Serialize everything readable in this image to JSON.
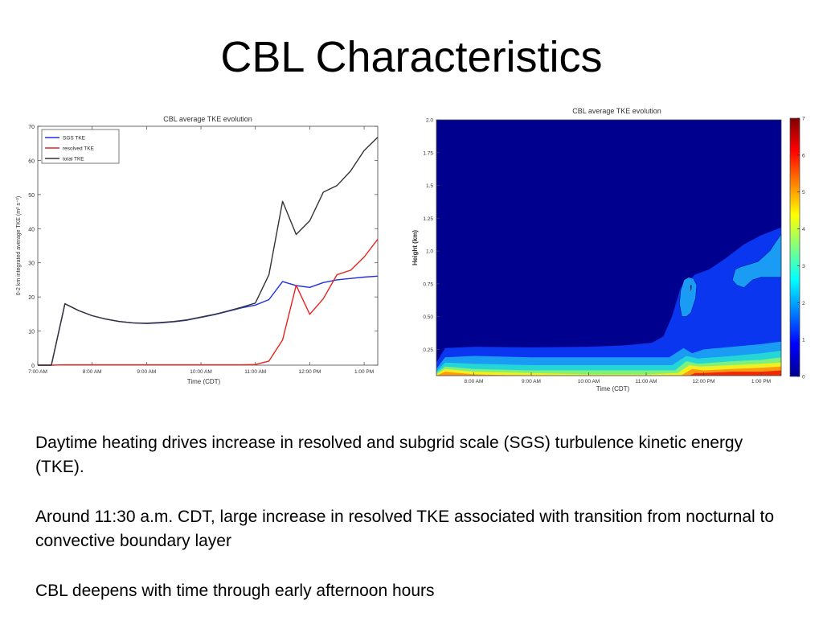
{
  "slide": {
    "title": "CBL Characteristics",
    "paragraphs": [
      "Daytime heating drives increase in resolved and subgrid scale (SGS)  turbulence kinetic energy (TKE).",
      "Around 11:30 a.m. CDT, large increase in resolved TKE associated with transition from nocturnal to convective boundary layer",
      "CBL deepens with time through early afternoon hours"
    ]
  },
  "chart_data": [
    {
      "type": "line",
      "title": "CBL average TKE evolution",
      "xlabel": "Time (CDT)",
      "ylabel": "0-2 km integrated average TKE (m² s⁻²)",
      "x_tick_labels": [
        "7:00 AM",
        "8:00 AM",
        "9:00 AM",
        "10:00 AM",
        "11:00 AM",
        "12:00 PM",
        "1:00 PM"
      ],
      "x_tick_hours": [
        7,
        8,
        9,
        10,
        11,
        12,
        13
      ],
      "xlim": [
        7,
        13.25
      ],
      "ylim": [
        0,
        70
      ],
      "y_ticks": [
        0,
        10,
        20,
        30,
        40,
        50,
        60,
        70
      ],
      "legend_position": "top-left",
      "x": [
        7.0,
        7.25,
        7.5,
        7.75,
        8.0,
        8.25,
        8.5,
        8.75,
        9.0,
        9.25,
        9.5,
        9.75,
        10.0,
        10.25,
        10.5,
        10.75,
        11.0,
        11.25,
        11.5,
        11.75,
        12.0,
        12.25,
        12.5,
        12.75,
        13.0,
        13.25
      ],
      "series": [
        {
          "name": "SGS TKE",
          "color": "#1f2fe0",
          "values": [
            0,
            0,
            18,
            16,
            14.5,
            13.5,
            12.8,
            12.4,
            12.2,
            12.4,
            12.7,
            13.2,
            14.0,
            14.8,
            15.8,
            16.8,
            17.6,
            19.2,
            24.5,
            23.3,
            22.8,
            24.2,
            25.0,
            25.4,
            25.8,
            26.1
          ]
        },
        {
          "name": "resolved TKE",
          "color": "#e8231f",
          "values": [
            0,
            0,
            0.1,
            0.1,
            0.1,
            0.1,
            0.1,
            0.1,
            0.1,
            0.1,
            0.1,
            0.1,
            0.1,
            0.1,
            0.1,
            0.1,
            0.2,
            1.2,
            7.4,
            23.4,
            14.9,
            19.5,
            26.5,
            27.8,
            31.7,
            36.9
          ]
        },
        {
          "name": "total TKE",
          "color": "#333333",
          "values": [
            0,
            0,
            18,
            16,
            14.5,
            13.5,
            12.8,
            12.4,
            12.3,
            12.5,
            12.8,
            13.3,
            14.1,
            14.9,
            15.9,
            17.0,
            18.2,
            26.5,
            48.0,
            38.3,
            42.3,
            50.7,
            52.6,
            56.9,
            62.9,
            66.8
          ]
        }
      ]
    },
    {
      "type": "heatmap",
      "title": "CBL average TKE evolution",
      "xlabel": "Time (CDT)",
      "ylabel": "Height (km)",
      "x_tick_labels": [
        "8:00 AM",
        "9:00 AM",
        "10:00 AM",
        "11:00 AM",
        "12:00 PM",
        "1:00 PM"
      ],
      "x_tick_hours": [
        8,
        9,
        10,
        11,
        12,
        13
      ],
      "xlim": [
        7.35,
        13.35
      ],
      "y_tick_labels": [
        "0.25",
        "0.50",
        "0.75",
        "1.0",
        "1.25",
        "1.5",
        "1.75",
        "2.0"
      ],
      "y_tick_values": [
        0.25,
        0.5,
        0.75,
        1.0,
        1.25,
        1.5,
        1.75,
        2.0
      ],
      "ylim": [
        0.05,
        2.0
      ],
      "colorbar": {
        "min": 0,
        "max": 7,
        "ticks": [
          0,
          1,
          2,
          3,
          4,
          5,
          6,
          7
        ]
      },
      "level_colors": [
        "#00008f",
        "#0a36f0",
        "#1a9cf5",
        "#24d6d6",
        "#7df07d",
        "#f0f020",
        "#ff9a10",
        "#f02a00",
        "#a00000"
      ],
      "annotation": "!",
      "annotation_time": 11.78,
      "annotation_height": 0.7,
      "boundaries": [
        {
          "level": 1,
          "times": [
            7.35,
            7.5,
            8.0,
            9.0,
            10.0,
            10.6,
            11.1,
            11.3,
            11.45,
            11.6,
            11.85,
            12.1,
            12.4,
            12.7,
            13.0,
            13.35
          ],
          "heights": [
            0.15,
            0.26,
            0.27,
            0.265,
            0.27,
            0.28,
            0.3,
            0.35,
            0.5,
            0.72,
            0.82,
            0.86,
            0.95,
            1.05,
            1.12,
            1.18
          ]
        },
        {
          "level": 2,
          "times": [
            7.35,
            7.5,
            8.0,
            9.0,
            10.0,
            11.0,
            11.4,
            11.65,
            11.8,
            12.0,
            12.5,
            13.0,
            13.35
          ],
          "heights": [
            0.1,
            0.19,
            0.2,
            0.19,
            0.19,
            0.19,
            0.19,
            0.26,
            0.22,
            0.25,
            0.27,
            0.29,
            0.31
          ]
        },
        {
          "level": 3,
          "times": [
            7.35,
            7.5,
            8.0,
            9.0,
            10.0,
            11.0,
            11.45,
            11.7,
            11.9,
            12.5,
            13.0,
            13.35
          ],
          "heights": [
            0.08,
            0.15,
            0.14,
            0.13,
            0.13,
            0.13,
            0.13,
            0.2,
            0.18,
            0.2,
            0.22,
            0.24
          ]
        },
        {
          "level": 4,
          "times": [
            7.35,
            7.5,
            8.0,
            9.0,
            10.0,
            11.0,
            11.5,
            11.7,
            11.9,
            12.5,
            13.0,
            13.35
          ],
          "heights": [
            0.07,
            0.12,
            0.1,
            0.09,
            0.09,
            0.09,
            0.09,
            0.16,
            0.14,
            0.16,
            0.17,
            0.19
          ]
        },
        {
          "level": 5,
          "times": [
            7.35,
            7.5,
            8.0,
            9.0,
            10.0,
            11.0,
            11.55,
            11.75,
            11.95,
            12.5,
            13.0,
            13.35
          ],
          "heights": [
            0.06,
            0.1,
            0.08,
            0.07,
            0.06,
            0.06,
            0.07,
            0.13,
            0.12,
            0.13,
            0.14,
            0.15
          ]
        },
        {
          "level": 6,
          "times": [
            7.35,
            7.5,
            8.0,
            9.0,
            10.0,
            11.0,
            11.6,
            11.8,
            12.0,
            12.5,
            13.0,
            13.35
          ],
          "heights": [
            0.05,
            0.08,
            0.06,
            0.05,
            0.05,
            0.05,
            0.05,
            0.1,
            0.09,
            0.1,
            0.11,
            0.12
          ]
        },
        {
          "level": 7,
          "times": [
            11.75,
            11.85,
            12.0,
            12.5,
            13.0,
            13.35
          ],
          "heights": [
            0.05,
            0.07,
            0.07,
            0.08,
            0.08,
            0.09
          ]
        }
      ],
      "patches": [
        {
          "level": 2,
          "times": [
            11.58,
            11.62,
            11.7,
            11.78,
            11.86,
            11.88,
            11.82,
            11.74,
            11.66,
            11.6,
            11.58
          ],
          "heights": [
            0.6,
            0.5,
            0.5,
            0.53,
            0.64,
            0.74,
            0.79,
            0.8,
            0.78,
            0.7,
            0.6
          ]
        },
        {
          "level": 2,
          "times": [
            12.5,
            12.58,
            12.7,
            12.85,
            13.0,
            13.15,
            13.35,
            13.35,
            13.15,
            12.95,
            12.8,
            12.65,
            12.55,
            12.5
          ],
          "heights": [
            0.78,
            0.74,
            0.72,
            0.78,
            0.8,
            0.8,
            0.8,
            1.13,
            1.0,
            0.92,
            0.9,
            0.88,
            0.86,
            0.78
          ]
        }
      ]
    }
  ]
}
